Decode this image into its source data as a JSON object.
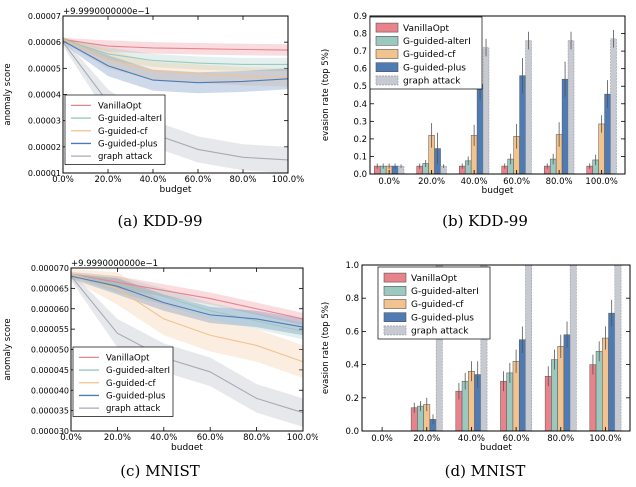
{
  "captions": [
    "(a)  KDD-99",
    "(b)  KDD-99",
    "(c)  MNIST",
    "(d)  MNIST"
  ],
  "colors": {
    "VanillaOpt": "#e8838c",
    "G-guided-alterI": "#9cc9bf",
    "G-guided-cf": "#f2c28f",
    "G-guided-plus": "#4f7bb5",
    "graph attack": "#a7abb6"
  },
  "chart_data": [
    {
      "type": "line",
      "offset_label": "+9.9990000000e−1",
      "xlabel": "budget",
      "ylabel": "anomaly score",
      "x": [
        0,
        20,
        40,
        60,
        80,
        100
      ],
      "xticks": [
        "0.0%",
        "20.0%",
        "40.0%",
        "60.0%",
        "80.0%",
        "100.0%"
      ],
      "ylim": [
        1e-05,
        7e-05
      ],
      "yticks": [
        "0.00001",
        "0.00002",
        "0.00003",
        "0.00004",
        "0.00005",
        "0.00006",
        "0.00007"
      ],
      "legend_position": "lower-left",
      "series": [
        {
          "name": "VanillaOpt",
          "values": [
            6.1e-05,
            5.85e-05,
            5.78e-05,
            5.75e-05,
            5.72e-05,
            5.7e-05
          ],
          "spread": 2.2e-06
        },
        {
          "name": "G-guided-alterI",
          "values": [
            6.1e-05,
            5.55e-05,
            5.3e-05,
            5.2e-05,
            5.15e-05,
            5.15e-05
          ],
          "spread": 2.5e-06
        },
        {
          "name": "G-guided-cf",
          "values": [
            6.1e-05,
            5.35e-05,
            4.9e-05,
            4.8e-05,
            4.7e-05,
            4.65e-05
          ],
          "spread": 3.5e-06
        },
        {
          "name": "G-guided-plus",
          "values": [
            6.05e-05,
            5.1e-05,
            4.55e-05,
            4.45e-05,
            4.5e-05,
            4.6e-05
          ],
          "spread": 4e-06
        },
        {
          "name": "graph attack",
          "values": [
            6e-05,
            3.7e-05,
            2.5e-05,
            1.9e-05,
            1.6e-05,
            1.5e-05
          ],
          "spread": 5e-06
        }
      ]
    },
    {
      "type": "bar",
      "xlabel": "budget",
      "ylabel": "evasion rate (top 5%)",
      "categories": [
        "0.0%",
        "20.0%",
        "40.0%",
        "60.0%",
        "80.0%",
        "100.0%"
      ],
      "ylim": [
        0,
        0.9
      ],
      "yticks": [
        "0.0",
        "0.1",
        "0.2",
        "0.3",
        "0.4",
        "0.5",
        "0.6",
        "0.7",
        "0.8",
        "0.9"
      ],
      "legend_position": "top-left",
      "series": [
        {
          "name": "VanillaOpt",
          "values": [
            0.045,
            0.045,
            0.045,
            0.045,
            0.045,
            0.045
          ],
          "err": [
            0.015,
            0.015,
            0.015,
            0.015,
            0.015,
            0.015
          ]
        },
        {
          "name": "G-guided-alterI",
          "values": [
            0.045,
            0.06,
            0.075,
            0.085,
            0.085,
            0.08
          ],
          "err": [
            0.015,
            0.02,
            0.025,
            0.03,
            0.03,
            0.03
          ]
        },
        {
          "name": "G-guided-cf",
          "values": [
            0.045,
            0.22,
            0.22,
            0.215,
            0.225,
            0.285
          ],
          "err": [
            0.015,
            0.07,
            0.06,
            0.07,
            0.07,
            0.05
          ]
        },
        {
          "name": "G-guided-plus",
          "values": [
            0.045,
            0.145,
            0.51,
            0.56,
            0.54,
            0.455
          ],
          "err": [
            0.015,
            0.09,
            0.09,
            0.1,
            0.1,
            0.08
          ]
        },
        {
          "name": "graph attack",
          "values": [
            0.045,
            0.045,
            0.72,
            0.76,
            0.76,
            0.77
          ],
          "err": [
            0.01,
            0.01,
            0.05,
            0.05,
            0.05,
            0.05
          ]
        }
      ]
    },
    {
      "type": "line",
      "offset_label": "+9.9990000000e−1",
      "xlabel": "budget",
      "ylabel": "anomaly score",
      "x": [
        0,
        20,
        40,
        60,
        80,
        100
      ],
      "xticks": [
        "0.0%",
        "20.0%",
        "40.0%",
        "60.0%",
        "80.0%",
        "100.0%"
      ],
      "ylim": [
        3e-05,
        7e-05
      ],
      "yticks": [
        "0.000030",
        "0.000035",
        "0.000040",
        "0.000045",
        "0.000050",
        "0.000055",
        "0.000060",
        "0.000065",
        "0.000070"
      ],
      "legend_position": "lower-left",
      "series": [
        {
          "name": "VanillaOpt",
          "values": [
            6.85e-05,
            6.65e-05,
            6.45e-05,
            6.25e-05,
            6e-05,
            5.75e-05
          ],
          "spread": 1.5e-06
        },
        {
          "name": "G-guided-alterI",
          "values": [
            6.85e-05,
            6.6e-05,
            6.3e-05,
            5.95e-05,
            5.7e-05,
            5.45e-05
          ],
          "spread": 2e-06
        },
        {
          "name": "G-guided-cf",
          "values": [
            6.85e-05,
            6.5e-05,
            5.75e-05,
            5.35e-05,
            5.1e-05,
            4.7e-05
          ],
          "spread": 4e-06
        },
        {
          "name": "G-guided-plus",
          "values": [
            6.8e-05,
            6.55e-05,
            6.15e-05,
            5.85e-05,
            5.75e-05,
            5.55e-05
          ],
          "spread": 2e-06
        },
        {
          "name": "graph attack",
          "values": [
            6.8e-05,
            5.4e-05,
            4.8e-05,
            4.45e-05,
            3.8e-05,
            3.45e-05
          ],
          "spread": 3.5e-06
        }
      ]
    },
    {
      "type": "bar",
      "xlabel": "budget",
      "ylabel": "evasion rate (top 5%)",
      "categories": [
        "0.0%",
        "20.0%",
        "40.0%",
        "60.0%",
        "80.0%",
        "100.0%"
      ],
      "ylim": [
        0,
        1.0
      ],
      "yticks": [
        "0.0",
        "0.2",
        "0.4",
        "0.6",
        "0.8",
        "1.0"
      ],
      "legend_position": "top-left",
      "series": [
        {
          "name": "VanillaOpt",
          "values": [
            0.0,
            0.14,
            0.24,
            0.3,
            0.33,
            0.4
          ],
          "err": [
            0.0,
            0.03,
            0.05,
            0.06,
            0.06,
            0.06
          ]
        },
        {
          "name": "G-guided-alterI",
          "values": [
            0.0,
            0.15,
            0.3,
            0.35,
            0.43,
            0.48
          ],
          "err": [
            0.0,
            0.03,
            0.05,
            0.06,
            0.06,
            0.06
          ]
        },
        {
          "name": "G-guided-cf",
          "values": [
            0.0,
            0.16,
            0.36,
            0.42,
            0.51,
            0.56
          ],
          "err": [
            0.0,
            0.04,
            0.06,
            0.07,
            0.07,
            0.07
          ]
        },
        {
          "name": "G-guided-plus",
          "values": [
            0.0,
            0.07,
            0.34,
            0.55,
            0.58,
            0.71
          ],
          "err": [
            0.0,
            0.03,
            0.08,
            0.08,
            0.08,
            0.08
          ]
        },
        {
          "name": "graph attack",
          "values": [
            0.0,
            1.0,
            1.0,
            1.0,
            1.0,
            1.0
          ],
          "err": [
            0.0,
            0.0,
            0.0,
            0.0,
            0.0,
            0.0
          ]
        }
      ]
    }
  ]
}
